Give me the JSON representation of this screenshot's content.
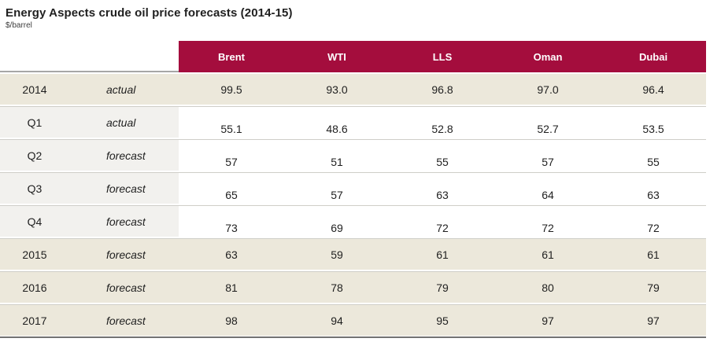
{
  "title": "Energy Aspects crude oil price forecasts (2014-15)",
  "subtitle": "$/barrel",
  "colors": {
    "header_bg": "#A40D3D",
    "header_text": "#FFFFFF",
    "year_row_bg": "#ECE8DB",
    "quarter_label_bg": "#F2F1EE",
    "row_separator": "#CFCEC8",
    "bottom_border": "#737373"
  },
  "table": {
    "columns": [
      "Brent",
      "WTI",
      "LLS",
      "Oman",
      "Dubai"
    ],
    "rows": [
      {
        "period": "2014",
        "type": "actual",
        "style": "year",
        "values": [
          "99.5",
          "93.0",
          "96.8",
          "97.0",
          "96.4"
        ]
      },
      {
        "period": "Q1",
        "type": "actual",
        "style": "quarter",
        "values": [
          "55.1",
          "48.6",
          "52.8",
          "52.7",
          "53.5"
        ]
      },
      {
        "period": "Q2",
        "type": "forecast",
        "style": "quarter",
        "values": [
          "57",
          "51",
          "55",
          "57",
          "55"
        ]
      },
      {
        "period": "Q3",
        "type": "forecast",
        "style": "quarter",
        "values": [
          "65",
          "57",
          "63",
          "64",
          "63"
        ]
      },
      {
        "period": "Q4",
        "type": "forecast",
        "style": "quarter",
        "values": [
          "73",
          "69",
          "72",
          "72",
          "72"
        ]
      },
      {
        "period": "2015",
        "type": "forecast",
        "style": "year",
        "values": [
          "63",
          "59",
          "61",
          "61",
          "61"
        ]
      },
      {
        "period": "2016",
        "type": "forecast",
        "style": "year",
        "values": [
          "81",
          "78",
          "79",
          "80",
          "79"
        ]
      },
      {
        "period": "2017",
        "type": "forecast",
        "style": "year",
        "values": [
          "98",
          "94",
          "95",
          "97",
          "97"
        ]
      }
    ]
  },
  "chart_data": {
    "type": "table",
    "title": "Energy Aspects crude oil price forecasts (2014-15)",
    "subtitle": "$/barrel",
    "columns": [
      "Brent",
      "WTI",
      "LLS",
      "Oman",
      "Dubai"
    ],
    "row_labels": [
      [
        "2014",
        "actual"
      ],
      [
        "Q1",
        "actual"
      ],
      [
        "Q2",
        "forecast"
      ],
      [
        "Q3",
        "forecast"
      ],
      [
        "Q4",
        "forecast"
      ],
      [
        "2015",
        "forecast"
      ],
      [
        "2016",
        "forecast"
      ],
      [
        "2017",
        "forecast"
      ]
    ],
    "values": [
      [
        99.5,
        93.0,
        96.8,
        97.0,
        96.4
      ],
      [
        55.1,
        48.6,
        52.8,
        52.7,
        53.5
      ],
      [
        57,
        51,
        55,
        57,
        55
      ],
      [
        65,
        57,
        63,
        64,
        63
      ],
      [
        73,
        69,
        72,
        72,
        72
      ],
      [
        63,
        59,
        61,
        61,
        61
      ],
      [
        81,
        78,
        79,
        80,
        79
      ],
      [
        98,
        94,
        95,
        97,
        97
      ]
    ]
  }
}
